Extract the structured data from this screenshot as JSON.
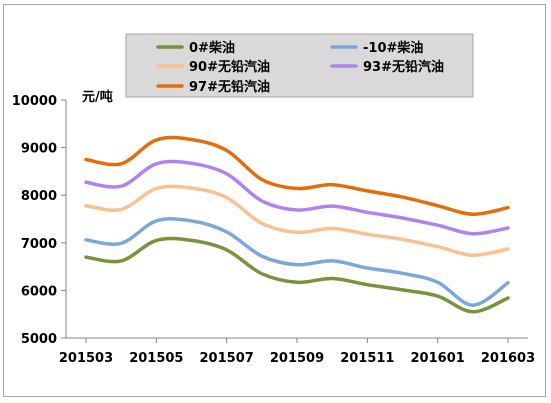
{
  "chart_data": {
    "type": "line",
    "y_unit_label": "元/吨",
    "ylim": [
      5000,
      10000
    ],
    "y_ticks": [
      5000,
      6000,
      7000,
      8000,
      9000,
      10000
    ],
    "x_start": "201503",
    "x_end": "201603",
    "x_ticks": [
      "201503",
      "201505",
      "201507",
      "201509",
      "201511",
      "201601",
      "201603"
    ],
    "grid": false,
    "legend_position": "top",
    "series": [
      {
        "name": "0#柴油",
        "color": "#77933c",
        "points": [
          [
            "201503",
            6700
          ],
          [
            "201504",
            6620
          ],
          [
            "201505",
            7050
          ],
          [
            "201506",
            7050
          ],
          [
            "201507",
            6850
          ],
          [
            "201508",
            6350
          ],
          [
            "201509",
            6170
          ],
          [
            "201510",
            6250
          ],
          [
            "201511",
            6120
          ],
          [
            "201512",
            6010
          ],
          [
            "201601",
            5880
          ],
          [
            "201602",
            5550
          ],
          [
            "201603",
            5840
          ]
        ]
      },
      {
        "name": "-10#柴油",
        "color": "#7aa8d8",
        "points": [
          [
            "201503",
            7060
          ],
          [
            "201504",
            6990
          ],
          [
            "201505",
            7460
          ],
          [
            "201506",
            7460
          ],
          [
            "201507",
            7230
          ],
          [
            "201508",
            6720
          ],
          [
            "201509",
            6540
          ],
          [
            "201510",
            6620
          ],
          [
            "201511",
            6470
          ],
          [
            "201512",
            6360
          ],
          [
            "201601",
            6170
          ],
          [
            "201602",
            5690
          ],
          [
            "201603",
            6160
          ]
        ]
      },
      {
        "name": "90#无铅汽油",
        "color": "#fac090",
        "points": [
          [
            "201503",
            7780
          ],
          [
            "201504",
            7700
          ],
          [
            "201505",
            8140
          ],
          [
            "201506",
            8150
          ],
          [
            "201507",
            7950
          ],
          [
            "201508",
            7410
          ],
          [
            "201509",
            7220
          ],
          [
            "201510",
            7300
          ],
          [
            "201511",
            7180
          ],
          [
            "201512",
            7070
          ],
          [
            "201601",
            6920
          ],
          [
            "201602",
            6740
          ],
          [
            "201603",
            6870
          ]
        ]
      },
      {
        "name": "93#无铅汽油",
        "color": "#b281f0",
        "points": [
          [
            "201503",
            8270
          ],
          [
            "201504",
            8190
          ],
          [
            "201505",
            8660
          ],
          [
            "201506",
            8670
          ],
          [
            "201507",
            8450
          ],
          [
            "201508",
            7880
          ],
          [
            "201509",
            7690
          ],
          [
            "201510",
            7770
          ],
          [
            "201511",
            7640
          ],
          [
            "201512",
            7520
          ],
          [
            "201601",
            7370
          ],
          [
            "201602",
            7190
          ],
          [
            "201603",
            7310
          ]
        ]
      },
      {
        "name": "97#无铅汽油",
        "color": "#e46c0a",
        "points": [
          [
            "201503",
            8750
          ],
          [
            "201504",
            8660
          ],
          [
            "201505",
            9160
          ],
          [
            "201506",
            9170
          ],
          [
            "201507",
            8940
          ],
          [
            "201508",
            8330
          ],
          [
            "201509",
            8140
          ],
          [
            "201510",
            8220
          ],
          [
            "201511",
            8090
          ],
          [
            "201512",
            7960
          ],
          [
            "201601",
            7780
          ],
          [
            "201602",
            7600
          ],
          [
            "201603",
            7740
          ]
        ]
      }
    ]
  }
}
